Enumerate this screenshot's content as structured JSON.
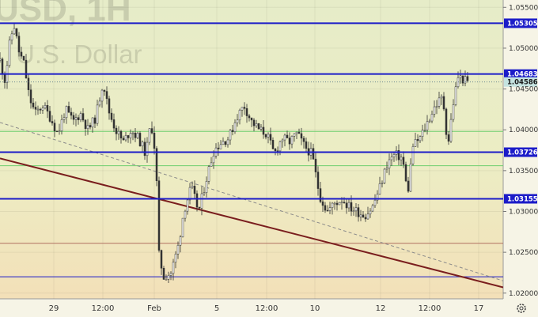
{
  "watermark": {
    "symbol": "USD, 1H",
    "name": "U.S. Dollar"
  },
  "colors": {
    "background": "#f3f1d8",
    "axis_bg": "#f6f4e6",
    "level": "#1c1cc8",
    "support_green": "#6fcf6f",
    "support_red": "#b07060",
    "trend_brown": "#7a1e1e",
    "trend_dashed": "#8a8a8a",
    "candles": "#333333",
    "current_label_bg": "#c5e3e0"
  },
  "chart_data": {
    "type": "candlestick",
    "y_axis": {
      "ticks": [
        "1.05500",
        "1.05000",
        "1.04500",
        "1.04000",
        "1.03500",
        "1.03000",
        "1.02500",
        "1.02000"
      ],
      "range": [
        1.0193,
        1.0559
      ]
    },
    "x_axis": {
      "ticks": [
        "29",
        "12:00",
        "Feb",
        "5",
        "12:00",
        "10",
        "12",
        "12:00",
        "17"
      ]
    },
    "horizontal_levels": [
      {
        "label": "1.05305",
        "value": 1.05305,
        "style": "blue-thick"
      },
      {
        "label": "1.04683",
        "value": 1.04683,
        "style": "blue-thick"
      },
      {
        "label": "1.03726",
        "value": 1.03726,
        "style": "blue-thick"
      },
      {
        "label": "1.03155",
        "value": 1.03155,
        "style": "blue-thick"
      }
    ],
    "thin_levels": [
      {
        "value": 1.0398,
        "color": "green"
      },
      {
        "value": 1.0356,
        "color": "green"
      },
      {
        "value": 1.0261,
        "color": "red"
      },
      {
        "value": 1.022,
        "color": "blue"
      }
    ],
    "current_price": {
      "label": "1.04586",
      "value": 1.04586
    },
    "trendlines": [
      {
        "style": "solid",
        "color": "brown",
        "from": [
          0.0,
          1.0365
        ],
        "to": [
          1.0,
          1.0207
        ]
      },
      {
        "style": "dashed",
        "color": "gray",
        "from": [
          0.0,
          1.0409
        ],
        "to": [
          1.0,
          1.0215
        ]
      }
    ],
    "price_path": [
      [
        0.0,
        1.0485
      ],
      [
        0.01,
        1.046
      ],
      [
        0.02,
        1.051
      ],
      [
        0.028,
        1.0528
      ],
      [
        0.038,
        1.0495
      ],
      [
        0.048,
        1.048
      ],
      [
        0.058,
        1.044
      ],
      [
        0.07,
        1.042
      ],
      [
        0.085,
        1.043
      ],
      [
        0.1,
        1.0415
      ],
      [
        0.115,
        1.0395
      ],
      [
        0.13,
        1.0425
      ],
      [
        0.145,
        1.041
      ],
      [
        0.16,
        1.042
      ],
      [
        0.175,
        1.04
      ],
      [
        0.19,
        1.0415
      ],
      [
        0.205,
        1.046
      ],
      [
        0.215,
        1.0425
      ],
      [
        0.23,
        1.04
      ],
      [
        0.245,
        1.0385
      ],
      [
        0.26,
        1.04
      ],
      [
        0.275,
        1.039
      ],
      [
        0.29,
        1.037
      ],
      [
        0.3,
        1.041
      ],
      [
        0.31,
        1.0365
      ],
      [
        0.315,
        1.025
      ],
      [
        0.325,
        1.022
      ],
      [
        0.34,
        1.0225
      ],
      [
        0.355,
        1.026
      ],
      [
        0.365,
        1.03
      ],
      [
        0.38,
        1.033
      ],
      [
        0.395,
        1.03
      ],
      [
        0.41,
        1.034
      ],
      [
        0.425,
        1.0375
      ],
      [
        0.44,
        1.0385
      ],
      [
        0.455,
        1.039
      ],
      [
        0.47,
        1.0415
      ],
      [
        0.485,
        1.043
      ],
      [
        0.5,
        1.041
      ],
      [
        0.515,
        1.04
      ],
      [
        0.53,
        1.0395
      ],
      [
        0.545,
        1.037
      ],
      [
        0.56,
        1.039
      ],
      [
        0.575,
        1.0385
      ],
      [
        0.59,
        1.0395
      ],
      [
        0.605,
        1.038
      ],
      [
        0.62,
        1.037
      ],
      [
        0.635,
        1.032
      ],
      [
        0.65,
        1.03
      ],
      [
        0.665,
        1.031
      ],
      [
        0.68,
        1.0315
      ],
      [
        0.695,
        1.0305
      ],
      [
        0.71,
        1.03
      ],
      [
        0.725,
        1.0295
      ],
      [
        0.74,
        1.0305
      ],
      [
        0.755,
        1.033
      ],
      [
        0.77,
        1.036
      ],
      [
        0.785,
        1.037
      ],
      [
        0.8,
        1.0365
      ],
      [
        0.81,
        1.032
      ],
      [
        0.82,
        1.038
      ],
      [
        0.835,
        1.039
      ],
      [
        0.85,
        1.041
      ],
      [
        0.865,
        1.043
      ],
      [
        0.88,
        1.044
      ],
      [
        0.89,
        1.038
      ],
      [
        0.9,
        1.043
      ],
      [
        0.91,
        1.0465
      ],
      [
        0.92,
        1.0462
      ],
      [
        0.93,
        1.0458
      ]
    ],
    "price_end_fraction": 0.93
  }
}
